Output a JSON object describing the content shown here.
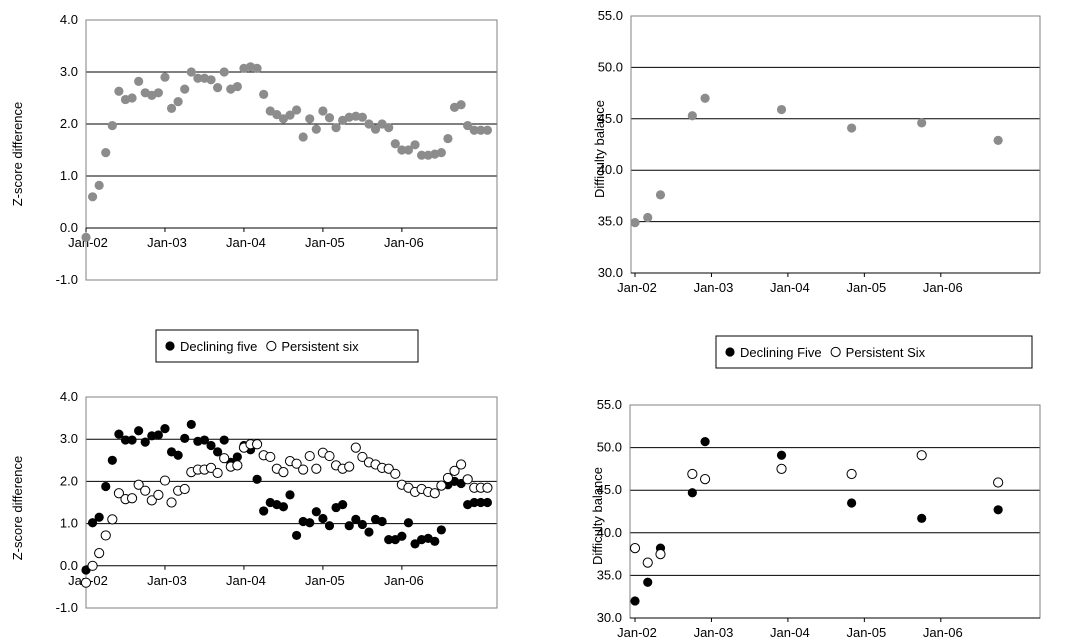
{
  "chart_data": [
    {
      "id": "zscore_all",
      "type": "scatter",
      "ylabel": "Z-score difference",
      "xlabel": "",
      "ylim": [
        -1.0,
        4.0
      ],
      "yticks": [
        "-1.0",
        "0.0",
        "1.0",
        "2.0",
        "3.0",
        "4.0"
      ],
      "xlim": [
        0,
        62
      ],
      "xticks": [
        {
          "pos": 0,
          "label": "Jan-02"
        },
        {
          "pos": 12,
          "label": "Jan-03"
        },
        {
          "pos": 24,
          "label": "Jan-04"
        },
        {
          "pos": 36,
          "label": "Jan-05"
        },
        {
          "pos": 48,
          "label": "Jan-06"
        }
      ],
      "grid": true,
      "series": [
        {
          "marker": "filled-grey",
          "color": "#8c8c8c",
          "x": [
            0,
            1,
            2,
            3,
            4,
            5,
            6,
            7,
            8,
            9,
            10,
            11,
            12,
            13,
            14,
            15,
            16,
            17,
            18,
            19,
            20,
            21,
            22,
            23,
            24,
            25,
            26,
            27,
            28,
            29,
            30,
            31,
            32,
            33,
            34,
            35,
            36,
            37,
            38,
            39,
            40,
            41,
            42,
            43,
            44,
            45,
            46,
            47,
            48,
            49,
            50,
            51,
            52,
            53,
            54,
            55,
            56,
            57,
            58,
            59,
            60,
            61
          ],
          "y": [
            -0.18,
            0.6,
            0.82,
            1.45,
            1.97,
            2.63,
            2.47,
            2.5,
            2.82,
            2.6,
            2.55,
            2.6,
            2.9,
            2.3,
            2.43,
            2.67,
            3.0,
            2.88,
            2.88,
            2.85,
            2.7,
            3.0,
            2.67,
            2.72,
            3.07,
            3.1,
            3.07,
            2.57,
            2.25,
            2.18,
            2.1,
            2.17,
            2.27,
            1.75,
            2.1,
            1.9,
            2.25,
            2.12,
            1.93,
            2.07,
            2.13,
            2.15,
            2.13,
            2.0,
            1.9,
            2.0,
            1.93,
            1.62,
            1.5,
            1.5,
            1.6,
            1.4,
            1.4,
            1.42,
            1.45,
            1.72,
            2.32,
            2.37,
            1.97,
            1.88,
            1.88,
            1.88
          ]
        }
      ]
    },
    {
      "id": "difficulty_all",
      "type": "scatter",
      "ylabel": "Difficulty balance",
      "xlabel": "",
      "ylim": [
        30.0,
        55.0
      ],
      "yticks": [
        "30.0",
        "35.0",
        "40.0",
        "45.0",
        "50.0",
        "55.0"
      ],
      "xlim": [
        0,
        62
      ],
      "xticks": [
        {
          "pos": 0,
          "label": "Jan-02"
        },
        {
          "pos": 12,
          "label": "Jan-03"
        },
        {
          "pos": 24,
          "label": "Jan-04"
        },
        {
          "pos": 36,
          "label": "Jan-05"
        },
        {
          "pos": 48,
          "label": "Jan-06"
        }
      ],
      "grid": true,
      "series": [
        {
          "marker": "filled-grey",
          "color": "#8c8c8c",
          "x": [
            0,
            2,
            4,
            9,
            11,
            23,
            34,
            45,
            57
          ],
          "y": [
            34.9,
            35.4,
            37.6,
            45.3,
            47.0,
            45.9,
            44.1,
            44.6,
            42.9
          ]
        }
      ]
    },
    {
      "id": "zscore_groups",
      "type": "scatter",
      "ylabel": "Z-score difference",
      "xlabel": "",
      "ylim": [
        -1.0,
        4.0
      ],
      "yticks": [
        "-1.0",
        "0.0",
        "1.0",
        "2.0",
        "3.0",
        "4.0"
      ],
      "xlim": [
        0,
        62
      ],
      "xticks": [
        {
          "pos": 0,
          "label": "Jan-02"
        },
        {
          "pos": 12,
          "label": "Jan-03"
        },
        {
          "pos": 24,
          "label": "Jan-04"
        },
        {
          "pos": 36,
          "label": "Jan-05"
        },
        {
          "pos": 48,
          "label": "Jan-06"
        }
      ],
      "grid": true,
      "legend": {
        "placement": "top",
        "items": [
          "Declining five",
          "Persistent six"
        ]
      },
      "series": [
        {
          "name": "Declining five",
          "marker": "filled-black",
          "color": "#000000",
          "x": [
            0,
            1,
            2,
            3,
            4,
            5,
            6,
            7,
            8,
            9,
            10,
            11,
            12,
            13,
            14,
            15,
            16,
            17,
            18,
            19,
            20,
            21,
            22,
            23,
            24,
            25,
            26,
            27,
            28,
            29,
            30,
            31,
            32,
            33,
            34,
            35,
            36,
            37,
            38,
            39,
            40,
            41,
            42,
            43,
            44,
            45,
            46,
            47,
            48,
            49,
            50,
            51,
            52,
            53,
            54,
            55,
            56,
            57,
            58,
            59,
            60,
            61
          ],
          "y": [
            -0.1,
            1.02,
            1.15,
            1.88,
            2.5,
            3.12,
            2.98,
            2.98,
            3.2,
            2.93,
            3.08,
            3.1,
            3.25,
            2.7,
            2.62,
            3.02,
            3.35,
            2.95,
            2.98,
            2.85,
            2.7,
            2.98,
            2.45,
            2.58,
            2.85,
            2.75,
            2.05,
            1.3,
            1.5,
            1.45,
            1.4,
            1.68,
            0.72,
            1.05,
            1.02,
            1.28,
            1.12,
            0.95,
            1.38,
            1.45,
            0.95,
            1.1,
            0.98,
            0.8,
            1.1,
            1.05,
            0.62,
            0.62,
            0.7,
            1.02,
            0.52,
            0.62,
            0.65,
            0.58,
            0.85,
            1.92,
            2.0,
            1.95,
            1.45,
            1.5,
            1.5,
            1.5
          ]
        },
        {
          "name": "Persistent six",
          "marker": "hollow",
          "color": "#000000",
          "x": [
            0,
            1,
            2,
            3,
            4,
            5,
            6,
            7,
            8,
            9,
            10,
            11,
            12,
            13,
            14,
            15,
            16,
            17,
            18,
            19,
            20,
            21,
            22,
            23,
            24,
            25,
            26,
            27,
            28,
            29,
            30,
            31,
            32,
            33,
            34,
            35,
            36,
            37,
            38,
            39,
            40,
            41,
            42,
            43,
            44,
            45,
            46,
            47,
            48,
            49,
            50,
            51,
            52,
            53,
            54,
            55,
            56,
            57,
            58,
            59,
            60,
            61
          ],
          "y": [
            -0.4,
            0.0,
            0.3,
            0.72,
            1.1,
            1.72,
            1.58,
            1.6,
            1.92,
            1.78,
            1.55,
            1.68,
            2.02,
            1.5,
            1.78,
            1.82,
            2.22,
            2.28,
            2.28,
            2.32,
            2.2,
            2.55,
            2.35,
            2.38,
            2.8,
            2.88,
            2.88,
            2.62,
            2.58,
            2.3,
            2.22,
            2.48,
            2.42,
            2.28,
            2.6,
            2.3,
            2.68,
            2.6,
            2.38,
            2.3,
            2.35,
            2.8,
            2.58,
            2.45,
            2.4,
            2.32,
            2.3,
            2.18,
            1.92,
            1.85,
            1.75,
            1.82,
            1.75,
            1.72,
            1.9,
            2.08,
            2.25,
            2.4,
            2.05,
            1.85,
            1.85,
            1.85
          ]
        }
      ]
    },
    {
      "id": "difficulty_groups",
      "type": "scatter",
      "ylabel": "Difficulty balance",
      "xlabel": "",
      "ylim": [
        30.0,
        55.0
      ],
      "yticks": [
        "30.0",
        "35.0",
        "40.0",
        "45.0",
        "50.0",
        "55.0"
      ],
      "xlim": [
        0,
        62
      ],
      "xticks": [
        {
          "pos": 0,
          "label": "Jan-02"
        },
        {
          "pos": 12,
          "label": "Jan-03"
        },
        {
          "pos": 24,
          "label": "Jan-04"
        },
        {
          "pos": 36,
          "label": "Jan-05"
        },
        {
          "pos": 48,
          "label": "Jan-06"
        }
      ],
      "grid": true,
      "legend": {
        "placement": "top",
        "items": [
          "Declining Five",
          "Persistent Six"
        ]
      },
      "series": [
        {
          "name": "Declining Five",
          "marker": "filled-black",
          "color": "#000000",
          "x": [
            0,
            2,
            4,
            9,
            11,
            23,
            34,
            45,
            57
          ],
          "y": [
            32.0,
            34.2,
            38.2,
            44.7,
            50.7,
            49.1,
            43.5,
            41.7,
            42.7
          ]
        },
        {
          "name": "Persistent Six",
          "marker": "hollow",
          "color": "#000000",
          "x": [
            0,
            2,
            4,
            9,
            11,
            23,
            34,
            45,
            57
          ],
          "y": [
            38.2,
            36.5,
            37.5,
            46.9,
            46.3,
            47.5,
            46.9,
            49.1,
            45.9
          ]
        }
      ]
    }
  ]
}
